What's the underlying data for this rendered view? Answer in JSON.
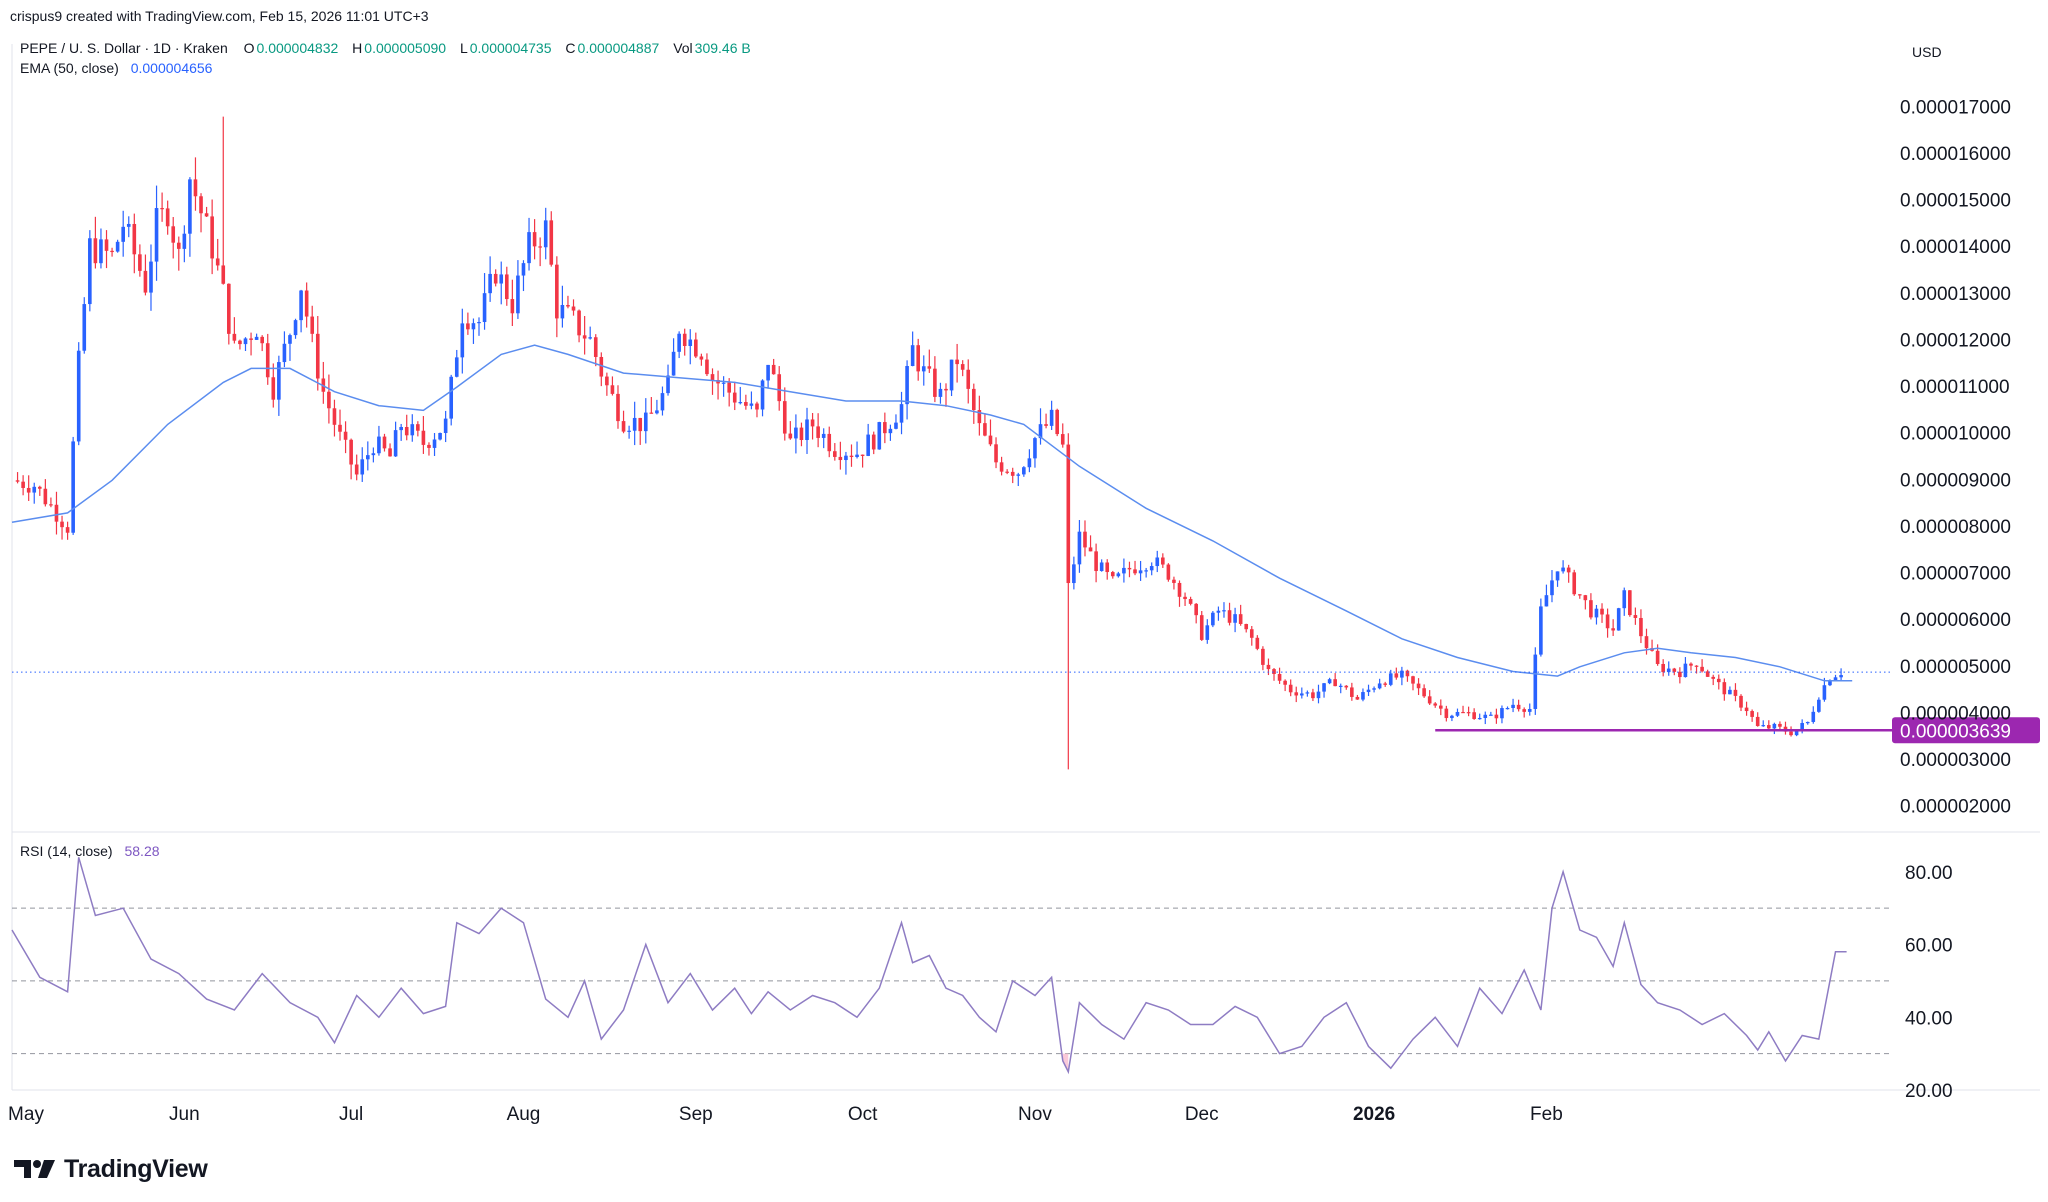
{
  "attribution": "crispus9 created with TradingView.com, Feb 15, 2026 11:01 UTC+3",
  "header": {
    "symbol": "PEPE / U. S. Dollar · 1D · Kraken",
    "open_label": "O",
    "open": "0.000004832",
    "high_label": "H",
    "high": "0.000005090",
    "low_label": "L",
    "low": "0.000004735",
    "close_label": "C",
    "close": "0.000004887",
    "vol_label": "Vol",
    "vol": "309.46 B",
    "ema_label": "EMA (50, close)",
    "ema_value": "0.000004656",
    "rsi_label": "RSI (14, close)",
    "rsi_value": "58.28"
  },
  "currency": "USD",
  "brand": "TradingView",
  "colors": {
    "up": "#2962ff",
    "down": "#f23645",
    "ema": "#5b8def",
    "rsi": "#8e7cc3",
    "support": "#9c27b0",
    "price_line": "#2962ff",
    "overbought_fill": "#c8e6c9",
    "oversold_fill": "#f8bbd0"
  },
  "chart_data": [
    {
      "type": "candlestick",
      "title": "PEPE / U. S. Dollar · 1D · Kraken",
      "x_ticks": [
        "May",
        "Jun",
        "Jul",
        "Aug",
        "Sep",
        "Oct",
        "Nov",
        "Dec",
        "2026",
        "Feb"
      ],
      "y_ticks": [
        "0.000017000",
        "0.000016000",
        "0.000015000",
        "0.000014000",
        "0.000013000",
        "0.000012000",
        "0.000011000",
        "0.000010000",
        "0.000009000",
        "0.000008000",
        "0.000007000",
        "0.000006000",
        "0.000005000",
        "0.000004000",
        "0.000003000",
        "0.000002000"
      ],
      "ylim": [
        1.5e-06,
        1.78e-05
      ],
      "current_price": 4.887e-06,
      "support_level": 3.639e-06,
      "support_label": "0.000003639",
      "ema_label": "EMA (50, close)",
      "ema_path": [
        [
          0,
          8.1e-06
        ],
        [
          10,
          8.3e-06
        ],
        [
          18,
          9e-06
        ],
        [
          28,
          1.02e-05
        ],
        [
          38,
          1.11e-05
        ],
        [
          43,
          1.14e-05
        ],
        [
          50,
          1.14e-05
        ],
        [
          58,
          1.09e-05
        ],
        [
          66,
          1.06e-05
        ],
        [
          74,
          1.05e-05
        ],
        [
          80,
          1.1e-05
        ],
        [
          88,
          1.17e-05
        ],
        [
          94,
          1.19e-05
        ],
        [
          100,
          1.17e-05
        ],
        [
          110,
          1.13e-05
        ],
        [
          120,
          1.12e-05
        ],
        [
          130,
          1.11e-05
        ],
        [
          140,
          1.09e-05
        ],
        [
          150,
          1.07e-05
        ],
        [
          160,
          1.07e-05
        ],
        [
          168,
          1.06e-05
        ],
        [
          176,
          1.04e-05
        ],
        [
          182,
          1.02e-05
        ],
        [
          192,
          9.3e-06
        ],
        [
          204,
          8.4e-06
        ],
        [
          216,
          7.7e-06
        ],
        [
          228,
          6.9e-06
        ],
        [
          240,
          6.2e-06
        ],
        [
          250,
          5.6e-06
        ],
        [
          260,
          5.2e-06
        ],
        [
          270,
          4.9e-06
        ],
        [
          278,
          4.8e-06
        ],
        [
          282,
          5e-06
        ],
        [
          290,
          5.3e-06
        ],
        [
          296,
          5.4e-06
        ],
        [
          302,
          5.3e-06
        ],
        [
          310,
          5.2e-06
        ],
        [
          318,
          5e-06
        ],
        [
          326,
          4.7e-06
        ],
        [
          331,
          4.7e-06
        ]
      ],
      "price_path": [
        [
          0,
          9e-06
        ],
        [
          4,
          8.9e-06
        ],
        [
          8,
          8.3e-06
        ],
        [
          10,
          8e-06
        ],
        [
          12,
          1.15e-05
        ],
        [
          14,
          1.4e-05
        ],
        [
          18,
          1.38e-05
        ],
        [
          20,
          1.45e-05
        ],
        [
          24,
          1.32e-05
        ],
        [
          26,
          1.45e-05
        ],
        [
          28,
          1.48e-05
        ],
        [
          30,
          1.38e-05
        ],
        [
          32,
          1.55e-05
        ],
        [
          36,
          1.4e-05
        ],
        [
          38,
          1.3e-05
        ],
        [
          40,
          1.18e-05
        ],
        [
          44,
          1.23e-05
        ],
        [
          47,
          1.1e-05
        ],
        [
          50,
          1.22e-05
        ],
        [
          52,
          1.32e-05
        ],
        [
          54,
          1.19e-05
        ],
        [
          56,
          1.09e-05
        ],
        [
          59,
          9.9e-06
        ],
        [
          62,
          9.1e-06
        ],
        [
          65,
          9.8e-06
        ],
        [
          68,
          9.5e-06
        ],
        [
          70,
          1.02e-05
        ],
        [
          74,
          9.8e-06
        ],
        [
          78,
          1.02e-05
        ],
        [
          81,
          1.26e-05
        ],
        [
          84,
          1.24e-05
        ],
        [
          87,
          1.35e-05
        ],
        [
          90,
          1.28e-05
        ],
        [
          93,
          1.4e-05
        ],
        [
          96,
          1.44e-05
        ],
        [
          98,
          1.27e-05
        ],
        [
          101,
          1.24e-05
        ],
        [
          104,
          1.2e-05
        ],
        [
          107,
          1.1e-05
        ],
        [
          110,
          1.03e-05
        ],
        [
          114,
          1.02e-05
        ],
        [
          118,
          1.1e-05
        ],
        [
          120,
          1.23e-05
        ],
        [
          122,
          1.2e-05
        ],
        [
          124,
          1.18e-05
        ],
        [
          126,
          1.12e-05
        ],
        [
          130,
          1.08e-05
        ],
        [
          134,
          1.04e-05
        ],
        [
          136,
          1.16e-05
        ],
        [
          140,
          9.8e-06
        ],
        [
          144,
          1.02e-05
        ],
        [
          148,
          9.7e-06
        ],
        [
          152,
          9.6e-06
        ],
        [
          156,
          1e-05
        ],
        [
          160,
          1.06e-05
        ],
        [
          162,
          1.18e-05
        ],
        [
          164,
          1.13e-05
        ],
        [
          167,
          1.08e-05
        ],
        [
          170,
          1.16e-05
        ],
        [
          174,
          1.01e-05
        ],
        [
          177,
          9.4e-06
        ],
        [
          181,
          9.2e-06
        ],
        [
          184,
          9.9e-06
        ],
        [
          187,
          1.03e-05
        ],
        [
          189,
          9.7e-06
        ],
        [
          190,
          6.7e-06
        ],
        [
          192,
          7.8e-06
        ],
        [
          195,
          7.2e-06
        ],
        [
          198,
          6.8e-06
        ],
        [
          201,
          7.1e-06
        ],
        [
          205,
          7.3e-06
        ],
        [
          208,
          7e-06
        ],
        [
          211,
          6.5e-06
        ],
        [
          214,
          5.7e-06
        ],
        [
          217,
          6.2e-06
        ],
        [
          220,
          6e-06
        ],
        [
          223,
          5.6e-06
        ],
        [
          226,
          4.9e-06
        ],
        [
          230,
          4.5e-06
        ],
        [
          234,
          4.4e-06
        ],
        [
          238,
          4.7e-06
        ],
        [
          242,
          4.3e-06
        ],
        [
          246,
          4.7e-06
        ],
        [
          250,
          4.8e-06
        ],
        [
          254,
          4.4e-06
        ],
        [
          258,
          4e-06
        ],
        [
          262,
          4e-06
        ],
        [
          266,
          3.9e-06
        ],
        [
          270,
          4.2e-06
        ],
        [
          273,
          4.1e-06
        ],
        [
          275,
          6.2e-06
        ],
        [
          278,
          7.2e-06
        ],
        [
          281,
          6.7e-06
        ],
        [
          284,
          6.2e-06
        ],
        [
          288,
          5.8e-06
        ],
        [
          290,
          6.5e-06
        ],
        [
          293,
          5.7e-06
        ],
        [
          296,
          5e-06
        ],
        [
          300,
          4.9e-06
        ],
        [
          303,
          5.1e-06
        ],
        [
          306,
          4.7e-06
        ],
        [
          309,
          4.4e-06
        ],
        [
          312,
          4.1e-06
        ],
        [
          314,
          3.7e-06
        ],
        [
          317,
          3.7e-06
        ],
        [
          320,
          3.6e-06
        ],
        [
          323,
          3.8e-06
        ],
        [
          325,
          4.4e-06
        ],
        [
          327,
          4.8e-06
        ],
        [
          329,
          4.9e-06
        ]
      ]
    },
    {
      "type": "line",
      "title": "RSI (14, close)",
      "y_ticks": [
        "80.00",
        "60.00",
        "40.00",
        "20.00"
      ],
      "ylim": [
        20,
        86
      ],
      "levels": [
        70,
        50,
        30
      ],
      "x": [
        0,
        5,
        10,
        12,
        15,
        20,
        25,
        30,
        35,
        40,
        45,
        50,
        55,
        58,
        62,
        66,
        70,
        74,
        78,
        80,
        84,
        88,
        92,
        96,
        100,
        103,
        106,
        110,
        114,
        118,
        122,
        126,
        130,
        133,
        136,
        140,
        144,
        148,
        152,
        156,
        160,
        162,
        165,
        168,
        171,
        174,
        177,
        180,
        184,
        187,
        189,
        190,
        192,
        196,
        200,
        204,
        208,
        212,
        216,
        220,
        224,
        228,
        232,
        236,
        240,
        244,
        248,
        252,
        256,
        260,
        264,
        268,
        272,
        275,
        277,
        279,
        282,
        285,
        288,
        290,
        293,
        296,
        300,
        304,
        308,
        312,
        314,
        316,
        319,
        322,
        325,
        328,
        330
      ],
      "values": [
        64,
        51,
        47,
        84,
        68,
        70,
        56,
        52,
        45,
        42,
        52,
        44,
        40,
        33,
        46,
        40,
        48,
        41,
        43,
        66,
        63,
        70,
        66,
        45,
        40,
        50,
        34,
        42,
        60,
        44,
        52,
        42,
        48,
        41,
        47,
        42,
        46,
        44,
        40,
        48,
        66,
        55,
        57,
        48,
        46,
        40,
        36,
        50,
        46,
        51,
        28,
        25,
        44,
        38,
        34,
        44,
        42,
        38,
        38,
        43,
        40,
        30,
        32,
        40,
        44,
        32,
        26,
        34,
        40,
        32,
        48,
        41,
        53,
        42,
        70,
        80,
        64,
        62,
        54,
        66,
        49,
        44,
        42,
        38,
        41,
        35,
        31,
        36,
        28,
        35,
        34,
        58,
        58
      ]
    }
  ]
}
